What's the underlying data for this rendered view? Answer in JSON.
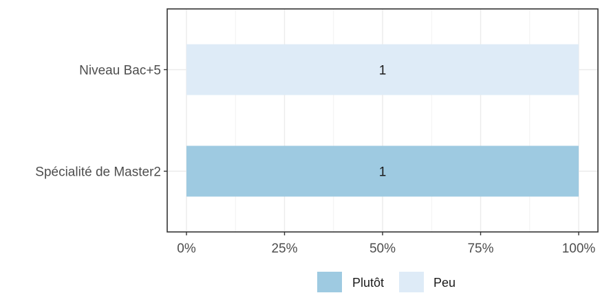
{
  "chart_data": {
    "type": "bar",
    "orientation": "horizontal",
    "stacked": true,
    "categories": [
      "Spécialité de Master2",
      "Niveau Bac+5"
    ],
    "series": [
      {
        "name": "Plutôt",
        "color": "#9ecae1",
        "values": [
          1,
          0
        ],
        "labels": [
          "1",
          ""
        ]
      },
      {
        "name": "Peu",
        "color": "#deebf7",
        "values": [
          0,
          1
        ],
        "labels": [
          "",
          "1"
        ]
      }
    ],
    "xlim": [
      0,
      1
    ],
    "xticks": [
      0,
      0.25,
      0.5,
      0.75,
      1
    ],
    "xtick_labels": [
      "0%",
      "25%",
      "50%",
      "75%",
      "100%"
    ],
    "title": "",
    "xlabel": "",
    "ylabel": "",
    "grid": true,
    "legend_position": "bottom"
  }
}
